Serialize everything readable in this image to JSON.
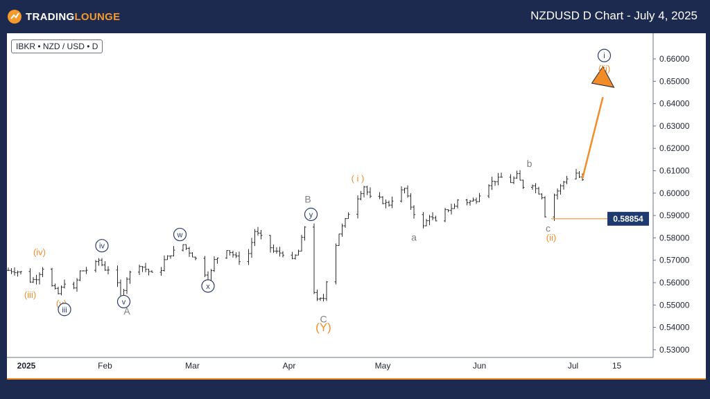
{
  "header": {
    "brand_trading": "TRADING",
    "brand_lounge": "LOUNGE",
    "title": "NZDUSD D Chart - July 4, 2025"
  },
  "colors": {
    "background": "#1d2a4f",
    "accent_orange": "#f28c28",
    "wave_blue": "#2a3b6b",
    "wave_gray": "#808080",
    "price_label_bg": "#1f3a6e"
  },
  "chart_data": {
    "type": "ohlc",
    "symbol_label": "IBKR • NZD / USD • D",
    "grid": false,
    "ylim": [
      0.523,
      0.6735
    ],
    "y_ticks": [
      "0.66000",
      "0.65000",
      "0.64000",
      "0.63000",
      "0.62000",
      "0.61000",
      "0.60000",
      "0.59000",
      "0.58000",
      "0.57000",
      "0.56000",
      "0.55000",
      "0.54000",
      "0.53000"
    ],
    "x_ticks": [
      {
        "label": "2025",
        "day": 0
      },
      {
        "label": "Feb",
        "day": 31
      },
      {
        "label": "Mar",
        "day": 59
      },
      {
        "label": "Apr",
        "day": 90
      },
      {
        "label": "May",
        "day": 120
      },
      {
        "label": "Jun",
        "day": 151
      },
      {
        "label": "Jul",
        "day": 181
      },
      {
        "label": "15",
        "day": 195
      }
    ],
    "price_line": {
      "value": 0.58854,
      "label": "0.58854",
      "from_day": 174
    },
    "forecast_arrow": {
      "from": [
        184,
        0.6065
      ],
      "to": [
        191,
        0.6485
      ]
    },
    "price_path": [
      [
        0,
        0.5655
      ],
      [
        5,
        0.5645
      ],
      [
        6,
        0.56
      ],
      [
        9,
        0.562
      ],
      [
        11,
        0.5665
      ],
      [
        13,
        0.56
      ],
      [
        16,
        0.555
      ],
      [
        18,
        0.56
      ],
      [
        21,
        0.557
      ],
      [
        23,
        0.565
      ],
      [
        26,
        0.566
      ],
      [
        29,
        0.57
      ],
      [
        31,
        0.566
      ],
      [
        34,
        0.566
      ],
      [
        36,
        0.5525
      ],
      [
        38,
        0.562
      ],
      [
        41,
        0.569
      ],
      [
        45,
        0.565
      ],
      [
        48,
        0.562
      ],
      [
        50,
        0.57
      ],
      [
        53,
        0.574
      ],
      [
        56,
        0.577
      ],
      [
        59,
        0.572
      ],
      [
        62,
        0.568
      ],
      [
        64,
        0.56
      ],
      [
        66,
        0.57
      ],
      [
        70,
        0.575
      ],
      [
        74,
        0.57
      ],
      [
        77,
        0.573
      ],
      [
        79,
        0.583
      ],
      [
        82,
        0.579
      ],
      [
        85,
        0.574
      ],
      [
        88,
        0.573
      ],
      [
        91,
        0.57
      ],
      [
        93,
        0.574
      ],
      [
        95,
        0.585
      ],
      [
        97,
        0.572
      ],
      [
        98,
        0.556
      ],
      [
        99,
        0.552
      ],
      [
        101,
        0.553
      ],
      [
        102,
        0.561
      ],
      [
        104,
        0.572
      ],
      [
        106,
        0.582
      ],
      [
        108,
        0.588
      ],
      [
        110,
        0.594
      ],
      [
        112,
        0.598
      ],
      [
        114,
        0.603
      ],
      [
        116,
        0.598
      ],
      [
        118,
        0.599
      ],
      [
        120,
        0.596
      ],
      [
        122,
        0.595
      ],
      [
        124,
        0.599
      ],
      [
        127,
        0.602
      ],
      [
        129,
        0.594
      ],
      [
        131,
        0.588
      ],
      [
        133,
        0.585
      ],
      [
        135,
        0.59
      ],
      [
        137,
        0.587
      ],
      [
        140,
        0.592
      ],
      [
        143,
        0.594
      ],
      [
        145,
        0.6
      ],
      [
        147,
        0.596
      ],
      [
        150,
        0.597
      ],
      [
        152,
        0.602
      ],
      [
        155,
        0.605
      ],
      [
        158,
        0.607
      ],
      [
        161,
        0.605
      ],
      [
        163,
        0.608
      ],
      [
        165,
        0.603
      ],
      [
        167,
        0.606
      ],
      [
        169,
        0.602
      ],
      [
        171,
        0.5985
      ],
      [
        172,
        0.59
      ],
      [
        174,
        0.5975
      ],
      [
        176,
        0.601
      ],
      [
        178,
        0.605
      ],
      [
        180,
        0.6085
      ],
      [
        182,
        0.609
      ],
      [
        184,
        0.6055
      ]
    ],
    "wave_labels": [
      {
        "text": "(iv)",
        "day": 10,
        "price": 0.5735,
        "style": "orange"
      },
      {
        "text": "(iii)",
        "day": 7,
        "price": 0.5545,
        "style": "orange"
      },
      {
        "text": "(v)",
        "day": 17,
        "price": 0.5505,
        "style": "orange"
      },
      {
        "text": "iii",
        "day": 18,
        "price": 0.548,
        "style": "blue-circle"
      },
      {
        "text": "iv",
        "day": 30,
        "price": 0.5765,
        "style": "blue-circle"
      },
      {
        "text": "v",
        "day": 37,
        "price": 0.5515,
        "style": "blue-circle"
      },
      {
        "text": "A",
        "day": 38,
        "price": 0.547,
        "style": "gray"
      },
      {
        "text": "w",
        "day": 55,
        "price": 0.5815,
        "style": "blue-circle"
      },
      {
        "text": "x",
        "day": 64,
        "price": 0.5585,
        "style": "blue-circle"
      },
      {
        "text": "B",
        "day": 96,
        "price": 0.597,
        "style": "gray"
      },
      {
        "text": "y",
        "day": 97,
        "price": 0.5905,
        "style": "blue-circle"
      },
      {
        "text": "C",
        "day": 101,
        "price": 0.5435,
        "style": "gray"
      },
      {
        "text": "(Y)",
        "day": 101,
        "price": 0.5395,
        "style": "orange-large"
      },
      {
        "text": "( i )",
        "day": 112,
        "price": 0.6065,
        "style": "orange"
      },
      {
        "text": "a",
        "day": 130,
        "price": 0.58,
        "style": "gray"
      },
      {
        "text": "b",
        "day": 167,
        "price": 0.613,
        "style": "gray"
      },
      {
        "text": "c",
        "day": 173,
        "price": 0.584,
        "style": "gray"
      },
      {
        "text": "(ii)",
        "day": 174,
        "price": 0.58,
        "style": "orange"
      },
      {
        "text": "i",
        "day": 191,
        "price": 0.6615,
        "style": "blue-circle"
      },
      {
        "text": "(iii)",
        "day": 191,
        "price": 0.6555,
        "style": "orange"
      }
    ]
  }
}
